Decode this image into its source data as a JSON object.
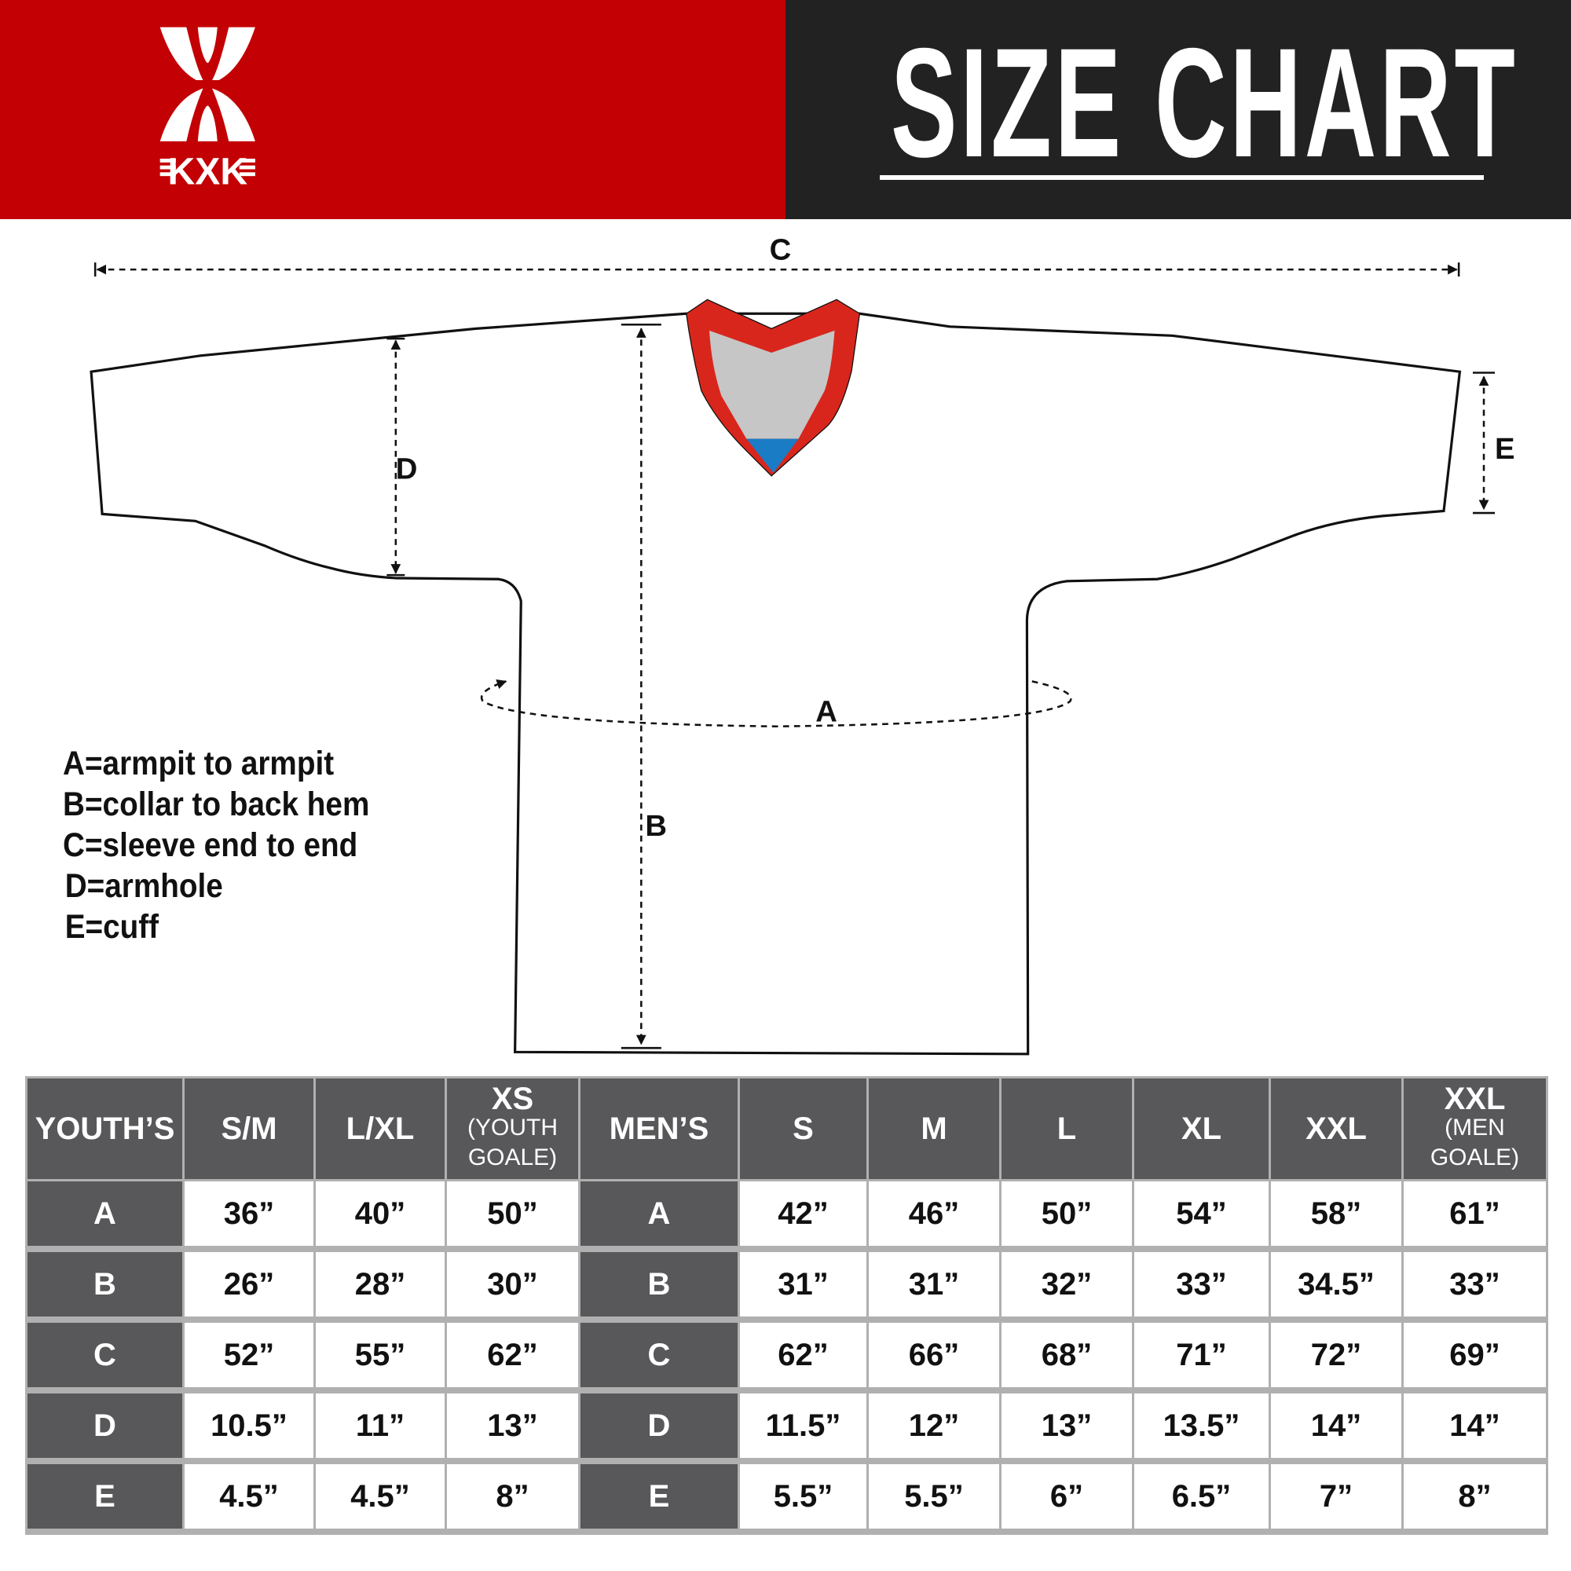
{
  "header": {
    "brand": "KXK",
    "title": "SIZE CHART",
    "colors": {
      "brand_red": "#c30004",
      "dark": "#222222",
      "table_header": "#58585a",
      "collar_red": "#d9261c",
      "collar_gray": "#c6c6c6",
      "collar_blue": "#1a7cc4"
    }
  },
  "diagram": {
    "labels": {
      "a": "A",
      "b": "B",
      "c": "C",
      "d": "D",
      "e": "E"
    }
  },
  "legend": [
    "A=armpit to armpit",
    "B=collar to back hem",
    "C=sleeve end to end",
    "D=armhole",
    "E=cuff"
  ],
  "table": {
    "headers": [
      {
        "main": "YOUTH’S"
      },
      {
        "main": "S/M"
      },
      {
        "main": "L/XL"
      },
      {
        "main": "XS",
        "sub1": "(YOUTH",
        "sub2": "GOALE)"
      },
      {
        "main": "MEN’S"
      },
      {
        "main": "S"
      },
      {
        "main": "M"
      },
      {
        "main": "L"
      },
      {
        "main": "XL"
      },
      {
        "main": "XXL"
      },
      {
        "main": "XXL",
        "sub1": "(MEN",
        "sub2": "GOALE)"
      }
    ],
    "rows": [
      [
        "A",
        "36”",
        "40”",
        "50”",
        "A",
        "42”",
        "46”",
        "50”",
        "54”",
        "58”",
        "61”"
      ],
      [
        "B",
        "26”",
        "28”",
        "30”",
        "B",
        "31”",
        "31”",
        "32”",
        "33”",
        "34.5”",
        "33”"
      ],
      [
        "C",
        "52”",
        "55”",
        "62”",
        "C",
        "62”",
        "66”",
        "68”",
        "71”",
        "72”",
        "69”"
      ],
      [
        "D",
        "10.5”",
        "11”",
        "13”",
        "D",
        "11.5”",
        "12”",
        "13”",
        "13.5”",
        "14”",
        "14”"
      ],
      [
        "E",
        "4.5”",
        "4.5”",
        "8”",
        "E",
        "5.5”",
        "5.5”",
        "6”",
        "6.5”",
        "7”",
        "8”"
      ]
    ]
  }
}
